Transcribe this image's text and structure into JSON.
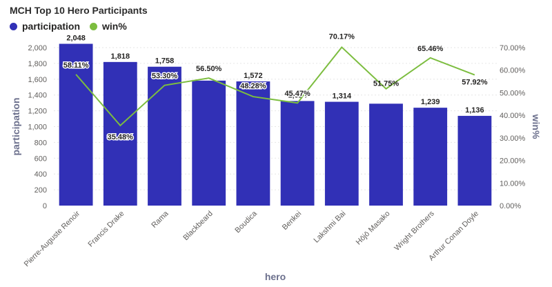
{
  "title": "MCH Top 10 Hero Participants",
  "legend": {
    "items": [
      {
        "label": "participation",
        "color": "#3130b6"
      },
      {
        "label": "win%",
        "color": "#7cbd3f"
      }
    ]
  },
  "colors": {
    "bar": "#3130b6",
    "line": "#7cbd3f",
    "grid": "#e6e6e6"
  },
  "chart_data": {
    "type": "bar+line",
    "categories": [
      "Pierre-Auguste Renoir",
      "Francis Drake",
      "Rama",
      "Blackbeard",
      "Boudica",
      "Benkei",
      "Lakshmi Bai",
      "Hōjō Masako",
      "Wright Brothers",
      "Arthur Conan Doyle"
    ],
    "series": [
      {
        "name": "participation",
        "type": "bar",
        "axis": "left",
        "values": [
          2048,
          1818,
          1758,
          1582,
          1572,
          1324,
          1314,
          1290,
          1239,
          1136
        ],
        "labels": [
          "2,048",
          "1,818",
          "1,758",
          "",
          "1,572",
          "1,324",
          "1,314",
          "",
          "1,239",
          "1,136"
        ]
      },
      {
        "name": "win%",
        "type": "line",
        "axis": "right",
        "values": [
          58.11,
          35.48,
          53.3,
          56.5,
          48.28,
          45.47,
          70.17,
          51.75,
          65.46,
          57.92
        ],
        "labels": [
          "58.11%",
          "35.48%",
          "53.30%",
          "56.50%",
          "48.28%",
          "45.47%",
          "70.17%",
          "51.75%",
          "65.46%",
          "57.92%"
        ]
      }
    ],
    "xlabel": "hero",
    "ylabel": "participation",
    "y2label": "win%",
    "ylim": [
      0,
      2000
    ],
    "y2lim": [
      0,
      70
    ],
    "yticks": [
      "0",
      "200",
      "400",
      "600",
      "800",
      "1,000",
      "1,200",
      "1,400",
      "1,600",
      "1,800",
      "2,000"
    ],
    "y2ticks": [
      "0.00%",
      "10.00%",
      "20.00%",
      "30.00%",
      "40.00%",
      "50.00%",
      "60.00%",
      "70.00%"
    ],
    "grid": true,
    "legend_position": "top-left"
  }
}
